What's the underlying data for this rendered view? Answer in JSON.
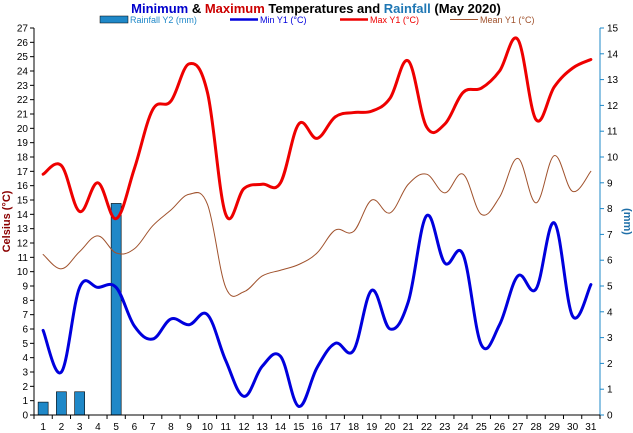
{
  "chart_data": {
    "type": "line",
    "title_parts": [
      {
        "text": "Minimum",
        "color": "#0000cc"
      },
      {
        "text": " & ",
        "color": "#000000"
      },
      {
        "text": "Maximum",
        "color": "#cc0000"
      },
      {
        "text": " Temperatures and ",
        "color": "#000000"
      },
      {
        "text": "Rainfall",
        "color": "#1f77b4"
      },
      {
        "text": " (May 2020)",
        "color": "#000000"
      }
    ],
    "ylabel_left": "Celsius (°C)",
    "ylabel_right": "(mm)",
    "ylim_left": [
      0,
      27
    ],
    "ylim_right": [
      0,
      15
    ],
    "x": [
      1,
      2,
      3,
      4,
      5,
      6,
      7,
      8,
      9,
      10,
      11,
      12,
      13,
      14,
      15,
      16,
      17,
      18,
      19,
      20,
      21,
      22,
      23,
      24,
      25,
      26,
      27,
      28,
      29,
      30,
      31
    ],
    "legend": [
      {
        "label": "Rainfall Y2 (mm)",
        "color": "#1f88c8",
        "kind": "bar"
      },
      {
        "label": "Min Y1 (°C)",
        "color": "#0000dd",
        "kind": "line"
      },
      {
        "label": "Max Y1 (°C)",
        "color": "#ee0000",
        "kind": "line"
      },
      {
        "label": "Mean Y1 (°C)",
        "color": "#a0522d",
        "kind": "line"
      }
    ],
    "series": [
      {
        "name": "Rainfall Y2 (mm)",
        "axis": "right",
        "kind": "bar",
        "color": "#1f88c8",
        "values": [
          0.5,
          0.9,
          0.9,
          0,
          8.2,
          0,
          0,
          0,
          0,
          0,
          0,
          0,
          0,
          0,
          0,
          0,
          0,
          0,
          0,
          0,
          0,
          0,
          0,
          0,
          0,
          0,
          0,
          0,
          0,
          0,
          0
        ]
      },
      {
        "name": "Min Y1 (°C)",
        "axis": "left",
        "kind": "line",
        "color": "#0000dd",
        "width": 3,
        "values": [
          5.9,
          3.0,
          8.9,
          8.9,
          8.9,
          6.2,
          5.3,
          6.7,
          6.3,
          7.0,
          3.8,
          1.3,
          3.4,
          4.1,
          0.6,
          3.3,
          5.0,
          4.5,
          8.7,
          6.0,
          7.9,
          13.9,
          10.6,
          11.2,
          4.9,
          6.3,
          9.7,
          8.8,
          13.4,
          6.9,
          9.1
        ]
      },
      {
        "name": "Max Y1 (°C)",
        "axis": "left",
        "kind": "line",
        "color": "#ee0000",
        "width": 3,
        "values": [
          16.8,
          17.4,
          14.2,
          16.2,
          13.7,
          17.2,
          21.3,
          21.9,
          24.5,
          22.5,
          14.0,
          15.8,
          16.1,
          16.2,
          20.3,
          19.3,
          20.8,
          21.1,
          21.2,
          22.1,
          24.7,
          20.1,
          20.3,
          22.5,
          22.8,
          24.0,
          26.2,
          20.6,
          22.9,
          24.2,
          24.8
        ]
      },
      {
        "name": "Mean Y1 (°C)",
        "axis": "left",
        "kind": "line",
        "color": "#a0522d",
        "width": 1,
        "values": [
          11.2,
          10.2,
          11.4,
          12.5,
          11.3,
          11.6,
          13.2,
          14.3,
          15.4,
          14.7,
          8.9,
          8.6,
          9.7,
          10.1,
          10.5,
          11.3,
          12.9,
          12.8,
          15.0,
          14.1,
          16.1,
          16.8,
          15.5,
          16.8,
          14.0,
          15.2,
          17.9,
          14.8,
          18.1,
          15.6,
          17.0
        ]
      }
    ]
  }
}
